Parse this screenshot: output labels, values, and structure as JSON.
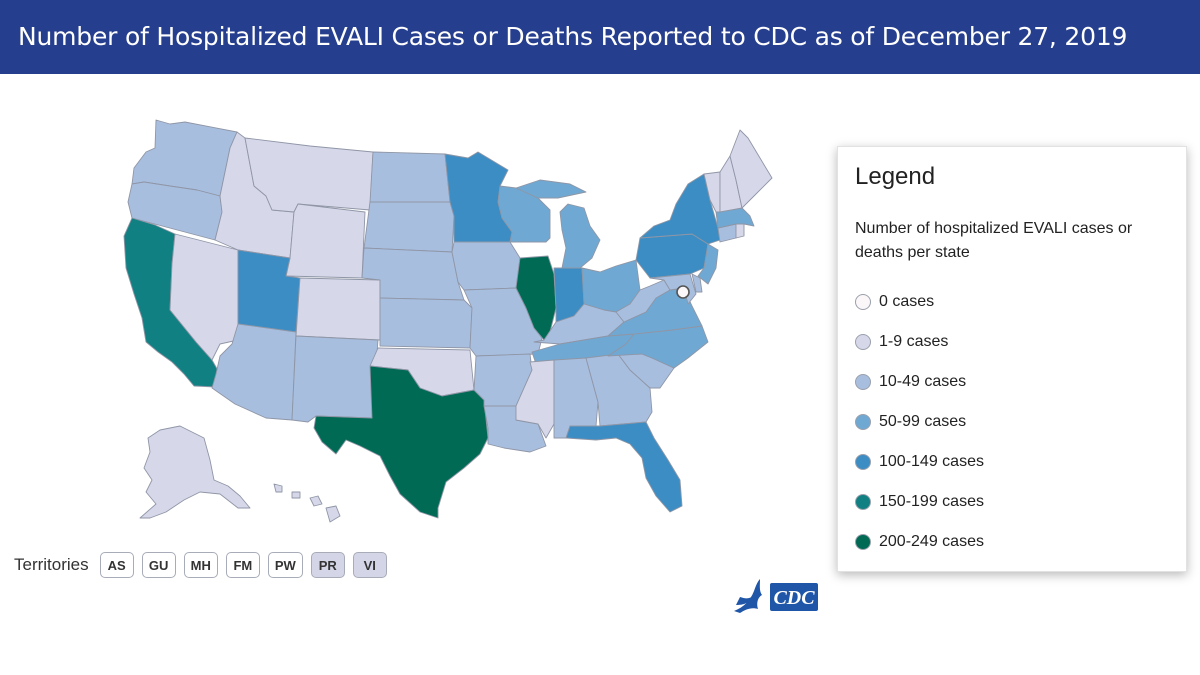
{
  "header": {
    "title": "Number of Hospitalized EVALI Cases or Deaths Reported to CDC as of December 27, 2019"
  },
  "colors": {
    "header_bg": "#263e8e",
    "c0": "#fbf6f8",
    "c1": "#d7d7ea",
    "c2": "#a8bedf",
    "c3": "#6fa9d3",
    "c4": "#3b8dc4",
    "c5": "#108082",
    "c6": "#006a55"
  },
  "map": {
    "states": [
      {
        "name": "Washington",
        "cls": "c2"
      },
      {
        "name": "Oregon",
        "cls": "c2"
      },
      {
        "name": "California",
        "cls": "c5"
      },
      {
        "name": "Nevada",
        "cls": "c1"
      },
      {
        "name": "Idaho",
        "cls": "c1"
      },
      {
        "name": "Montana",
        "cls": "c1"
      },
      {
        "name": "Wyoming",
        "cls": "c1"
      },
      {
        "name": "Utah",
        "cls": "c4"
      },
      {
        "name": "Arizona",
        "cls": "c2"
      },
      {
        "name": "Colorado",
        "cls": "c1"
      },
      {
        "name": "New Mexico",
        "cls": "c2"
      },
      {
        "name": "North Dakota",
        "cls": "c2"
      },
      {
        "name": "South Dakota",
        "cls": "c2"
      },
      {
        "name": "Nebraska",
        "cls": "c2"
      },
      {
        "name": "Kansas",
        "cls": "c2"
      },
      {
        "name": "Oklahoma",
        "cls": "c1"
      },
      {
        "name": "Texas",
        "cls": "c6"
      },
      {
        "name": "Minnesota",
        "cls": "c4"
      },
      {
        "name": "Iowa",
        "cls": "c2"
      },
      {
        "name": "Missouri",
        "cls": "c2"
      },
      {
        "name": "Arkansas",
        "cls": "c2"
      },
      {
        "name": "Louisiana",
        "cls": "c2"
      },
      {
        "name": "Wisconsin",
        "cls": "c3"
      },
      {
        "name": "Illinois",
        "cls": "c6"
      },
      {
        "name": "Michigan",
        "cls": "c3"
      },
      {
        "name": "Indiana",
        "cls": "c4"
      },
      {
        "name": "Ohio",
        "cls": "c3"
      },
      {
        "name": "Kentucky",
        "cls": "c2"
      },
      {
        "name": "Tennessee",
        "cls": "c3"
      },
      {
        "name": "Mississippi",
        "cls": "c1"
      },
      {
        "name": "Alabama",
        "cls": "c2"
      },
      {
        "name": "Georgia",
        "cls": "c2"
      },
      {
        "name": "Florida",
        "cls": "c4"
      },
      {
        "name": "South Carolina",
        "cls": "c2"
      },
      {
        "name": "North Carolina",
        "cls": "c3"
      },
      {
        "name": "Virginia",
        "cls": "c3"
      },
      {
        "name": "West Virginia",
        "cls": "c2"
      },
      {
        "name": "Pennsylvania",
        "cls": "c4"
      },
      {
        "name": "New York",
        "cls": "c4"
      },
      {
        "name": "New Jersey",
        "cls": "c3"
      },
      {
        "name": "Delaware",
        "cls": "c2"
      },
      {
        "name": "Maryland",
        "cls": "c2"
      },
      {
        "name": "District of Columbia",
        "cls": "c0"
      },
      {
        "name": "Connecticut",
        "cls": "c2"
      },
      {
        "name": "Rhode Island",
        "cls": "c1"
      },
      {
        "name": "Massachusetts",
        "cls": "c3"
      },
      {
        "name": "Vermont",
        "cls": "c1"
      },
      {
        "name": "New Hampshire",
        "cls": "c1"
      },
      {
        "name": "Maine",
        "cls": "c1"
      },
      {
        "name": "Alaska",
        "cls": "c1"
      },
      {
        "name": "Hawaii",
        "cls": "c1"
      }
    ]
  },
  "territories": {
    "label": "Territories",
    "items": [
      {
        "code": "AS",
        "cls": "c0"
      },
      {
        "code": "GU",
        "cls": "c0"
      },
      {
        "code": "MH",
        "cls": "c0"
      },
      {
        "code": "FM",
        "cls": "c0"
      },
      {
        "code": "PW",
        "cls": "c0"
      },
      {
        "code": "PR",
        "cls": "c1"
      },
      {
        "code": "VI",
        "cls": "c1"
      }
    ]
  },
  "legend": {
    "title": "Legend",
    "subtitle": "Number of hospitalized EVALI cases or deaths per state",
    "items": [
      {
        "label": "0 cases",
        "cls": "c0"
      },
      {
        "label": "1-9 cases",
        "cls": "c1"
      },
      {
        "label": "10-49 cases",
        "cls": "c2"
      },
      {
        "label": "50-99 cases",
        "cls": "c3"
      },
      {
        "label": "100-149 cases",
        "cls": "c4"
      },
      {
        "label": "150-199 cases",
        "cls": "c5"
      },
      {
        "label": "200-249 cases",
        "cls": "c6"
      }
    ]
  },
  "logo": {
    "text": "CDC"
  }
}
